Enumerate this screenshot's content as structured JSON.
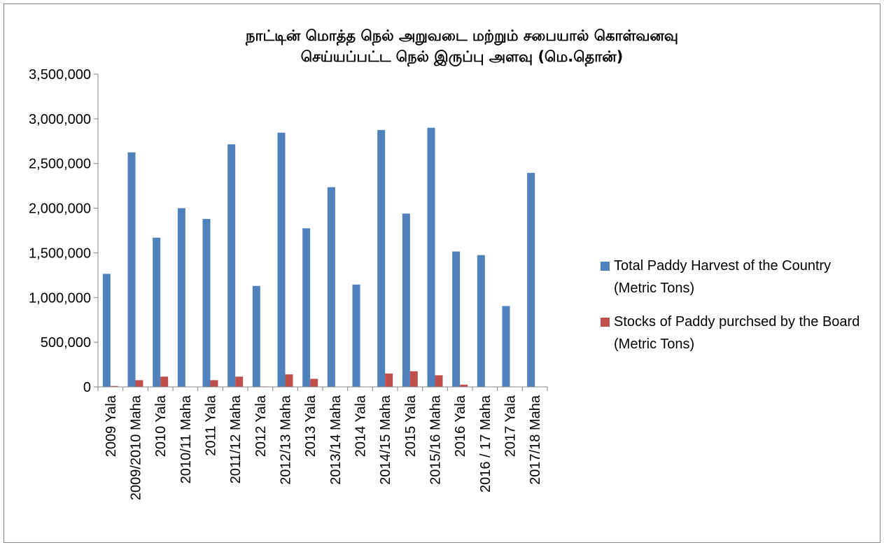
{
  "chart_data": {
    "type": "bar",
    "title": [
      "நாட்டின் மொத்த நெல் அறுவடை மற்றும் சபையால் கொள்வனவு",
      "செய்யப்பட்ட நெல் இருப்பு அளவு (மெ.தொன்)"
    ],
    "categories": [
      "2009 Yala",
      "2009/2010 Maha",
      "2010 Yala",
      "2010/11 Maha",
      "2011 Yala",
      "2011/12 Maha",
      "2012 Yala",
      "2012/13 Maha",
      "2013 Yala",
      "2013/14 Maha",
      "2014 Yala",
      "2014/15 Maha",
      "2015 Yala",
      "2015/16 Maha",
      "2016 Yala",
      "2016 / 17 Maha",
      "2017 Yala",
      "2017/18 Maha"
    ],
    "series": [
      {
        "name": "Total Paddy Harvest of  the Country (Metric Tons)",
        "color": "#4f81bd",
        "values": [
          1265000,
          2625000,
          1670000,
          2000000,
          1880000,
          2715000,
          1130000,
          2845000,
          1775000,
          2235000,
          1145000,
          2875000,
          1940000,
          2900000,
          1515000,
          1475000,
          905000,
          2395000
        ]
      },
      {
        "name": "Stocks of Paddy purchsed by the Board (Metric Tons)",
        "color": "#c0504d",
        "values": [
          10000,
          75000,
          115000,
          2000,
          75000,
          115000,
          5000,
          140000,
          90000,
          0,
          0,
          150000,
          175000,
          130000,
          25000,
          0,
          0,
          0
        ]
      }
    ],
    "ylim": [
      0,
      3500000
    ],
    "yticks": [
      0,
      {
        "value": 500000,
        "label": "500,000"
      },
      {
        "value": 1000000,
        "label": "1,000,000"
      },
      {
        "value": 1500000,
        "label": "1,500,000"
      },
      {
        "value": 2000000,
        "label": "2,000,000"
      },
      {
        "value": 2500000,
        "label": "2,500,000"
      },
      {
        "value": 3000000,
        "label": "3,000,000"
      },
      {
        "value": 3500000,
        "label": "3,500,000"
      }
    ],
    "grid": false,
    "legend": "right"
  }
}
